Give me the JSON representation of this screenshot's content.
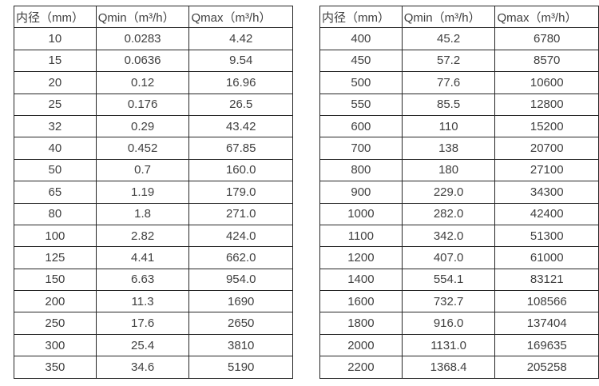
{
  "colors": {
    "background": "#ffffff",
    "border": "#262626",
    "text": "#404040"
  },
  "tables": [
    {
      "name": "flow-table-small-diameters",
      "headers": [
        "内径（mm）",
        "Qmin（m³/h）",
        "Qmax（m³/h）"
      ],
      "rows": [
        [
          "10",
          "0.0283",
          "4.42"
        ],
        [
          "15",
          "0.0636",
          "9.54"
        ],
        [
          "20",
          "0.12",
          "16.96"
        ],
        [
          "25",
          "0.176",
          "26.5"
        ],
        [
          "32",
          "0.29",
          "43.42"
        ],
        [
          "40",
          "0.452",
          "67.85"
        ],
        [
          "50",
          "0.7",
          "160.0"
        ],
        [
          "65",
          "1.19",
          "179.0"
        ],
        [
          "80",
          "1.8",
          "271.0"
        ],
        [
          "100",
          "2.82",
          "424.0"
        ],
        [
          "125",
          "4.41",
          "662.0"
        ],
        [
          "150",
          "6.63",
          "954.0"
        ],
        [
          "200",
          "11.3",
          "1690"
        ],
        [
          "250",
          "17.6",
          "2650"
        ],
        [
          "300",
          "25.4",
          "3810"
        ],
        [
          "350",
          "34.6",
          "5190"
        ]
      ]
    },
    {
      "name": "flow-table-large-diameters",
      "headers": [
        "内径（mm）",
        "Qmin（m³/h）",
        "Qmax（m³/h）"
      ],
      "rows": [
        [
          "400",
          "45.2",
          "6780"
        ],
        [
          "450",
          "57.2",
          "8570"
        ],
        [
          "500",
          "77.6",
          "10600"
        ],
        [
          "550",
          "85.5",
          "12800"
        ],
        [
          "600",
          "110",
          "15200"
        ],
        [
          "700",
          "138",
          "20700"
        ],
        [
          "800",
          "180",
          "27100"
        ],
        [
          "900",
          "229.0",
          "34300"
        ],
        [
          "1000",
          "282.0",
          "42400"
        ],
        [
          "1100",
          "342.0",
          "51300"
        ],
        [
          "1200",
          "407.0",
          "61000"
        ],
        [
          "1400",
          "554.1",
          "83121"
        ],
        [
          "1600",
          "732.7",
          "108566"
        ],
        [
          "1800",
          "916.0",
          "137404"
        ],
        [
          "2000",
          "1131.0",
          "169635"
        ],
        [
          "2200",
          "1368.4",
          "205258"
        ]
      ]
    }
  ]
}
